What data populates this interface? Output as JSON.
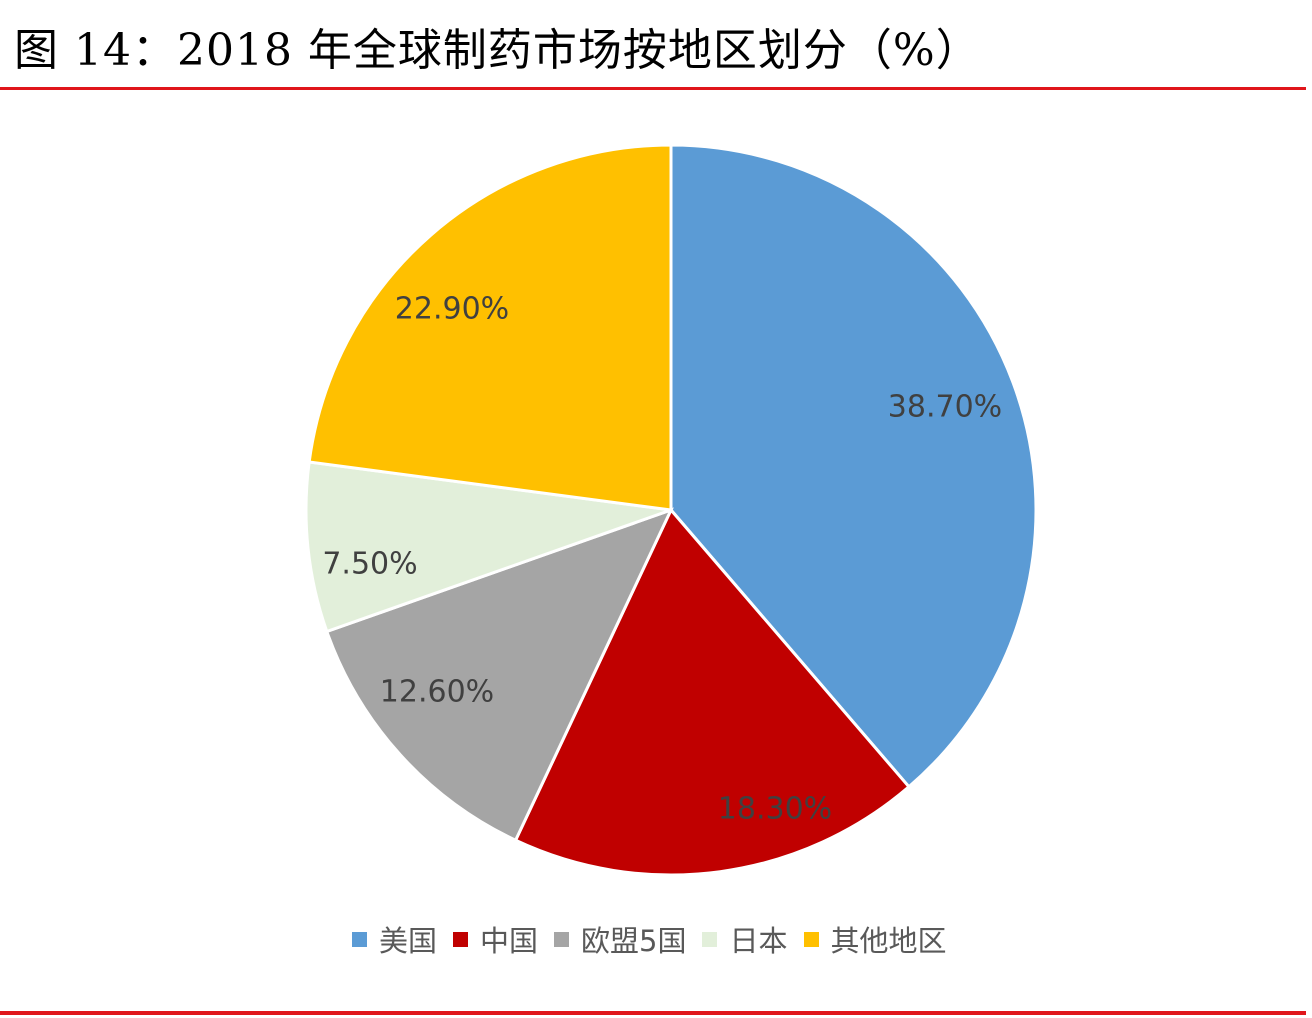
{
  "title": "图 14：2018 年全球制药市场按地区划分（%）",
  "chart_data": {
    "type": "pie",
    "title": "图 14：2018 年全球制药市场按地区划分（%）",
    "categories": [
      "美国",
      "中国",
      "欧盟5国",
      "日本",
      "其他地区"
    ],
    "values": [
      38.7,
      18.3,
      12.6,
      7.5,
      22.9
    ],
    "labels": [
      "38.70%",
      "18.30%",
      "12.60%",
      "7.50%",
      "22.90%"
    ],
    "colors": [
      "#5b9bd5",
      "#c00000",
      "#a5a5a5",
      "#e2efda",
      "#ffc000"
    ],
    "start_angle_deg": 0,
    "direction": "clockwise",
    "legend_position": "bottom"
  },
  "legend": [
    {
      "label": "美国",
      "color": "#5b9bd5"
    },
    {
      "label": "中国",
      "color": "#c00000"
    },
    {
      "label": "欧盟5国",
      "color": "#a5a5a5"
    },
    {
      "label": "日本",
      "color": "#e2efda"
    },
    {
      "label": "其他地区",
      "color": "#ffc000"
    }
  ]
}
